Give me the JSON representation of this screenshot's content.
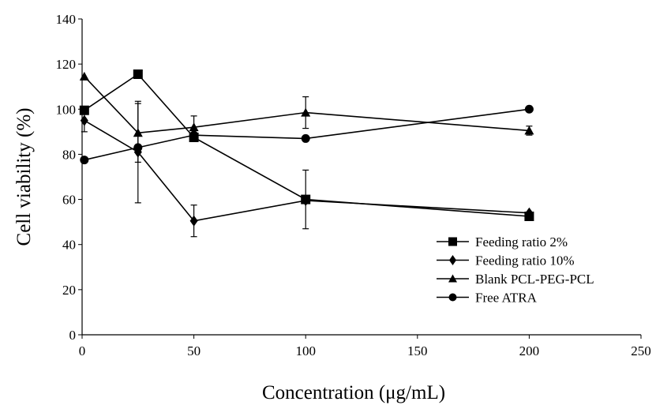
{
  "chart_data": {
    "type": "line",
    "title": "",
    "xlabel": "Concentration (μg/mL)",
    "ylabel": "Cell viability (%)",
    "xlim": [
      0,
      250
    ],
    "ylim": [
      0,
      140
    ],
    "x_ticks": [
      0,
      50,
      100,
      150,
      200,
      250
    ],
    "y_ticks": [
      0,
      20,
      40,
      60,
      80,
      100,
      120,
      140
    ],
    "y_tick_labels": [
      "0",
      "20",
      "40",
      "60",
      "80",
      "100",
      "120",
      "140"
    ],
    "grid": false,
    "legend_position": "bottom-right",
    "x": [
      1,
      25,
      50,
      100,
      200
    ],
    "series": [
      {
        "name": "Feeding ratio 2%",
        "marker": "square",
        "values": [
          99.5,
          115.5,
          87.5,
          60,
          52.5
        ],
        "error": [
          0,
          0,
          0,
          13,
          0
        ]
      },
      {
        "name": "Feeding ratio 10%",
        "marker": "diamond",
        "values": [
          95,
          81,
          50.5,
          59.5,
          54
        ],
        "error": [
          5,
          22.5,
          7,
          0,
          0
        ]
      },
      {
        "name": "Blank PCL-PEG-PCL",
        "marker": "triangle",
        "values": [
          114.5,
          89.5,
          92,
          98.5,
          90.5
        ],
        "error": [
          0,
          13,
          5,
          7,
          2
        ]
      },
      {
        "name": "Free ATRA",
        "marker": "circle",
        "values": [
          77.5,
          83,
          88.5,
          87,
          100
        ],
        "error": [
          0,
          0,
          0,
          0,
          0
        ]
      }
    ]
  }
}
